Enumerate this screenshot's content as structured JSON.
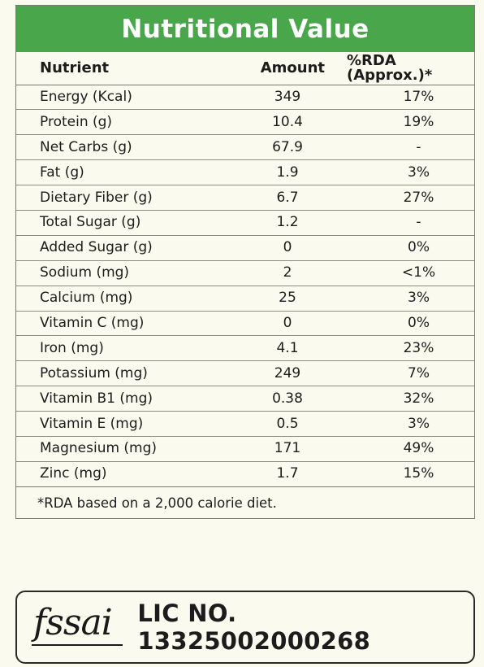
{
  "title": "Nutritional Value",
  "headers": {
    "nutrient": "Nutrient",
    "amount": "Amount",
    "rda": "%RDA (Approx.)*"
  },
  "rows": [
    {
      "nutrient": "Energy (Kcal)",
      "amount": "349",
      "rda": "17%"
    },
    {
      "nutrient": "Protein (g)",
      "amount": "10.4",
      "rda": "19%"
    },
    {
      "nutrient": "Net Carbs (g)",
      "amount": "67.9",
      "rda": "-"
    },
    {
      "nutrient": "Fat (g)",
      "amount": "1.9",
      "rda": "3%"
    },
    {
      "nutrient": "Dietary Fiber (g)",
      "amount": "6.7",
      "rda": "27%"
    },
    {
      "nutrient": "Total Sugar (g)",
      "amount": "1.2",
      "rda": "-"
    },
    {
      "nutrient": "Added Sugar (g)",
      "amount": "0",
      "rda": "0%"
    },
    {
      "nutrient": "Sodium (mg)",
      "amount": "2",
      "rda": "<1%"
    },
    {
      "nutrient": "Calcium (mg)",
      "amount": "25",
      "rda": "3%"
    },
    {
      "nutrient": "Vitamin C (mg)",
      "amount": "0",
      "rda": "0%"
    },
    {
      "nutrient": "Iron (mg)",
      "amount": "4.1",
      "rda": "23%"
    },
    {
      "nutrient": "Potassium (mg)",
      "amount": "249",
      "rda": "7%"
    },
    {
      "nutrient": "Vitamin B1 (mg)",
      "amount": "0.38",
      "rda": "32%"
    },
    {
      "nutrient": "Vitamin E (mg)",
      "amount": "0.5",
      "rda": "3%"
    },
    {
      "nutrient": "Magnesium (mg)",
      "amount": "171",
      "rda": "49%"
    },
    {
      "nutrient": "Zinc (mg)",
      "amount": "1.7",
      "rda": "15%"
    }
  ],
  "footnote": "*RDA based on a 2,000 calorie diet.",
  "fssai": {
    "logo_text": "fssai",
    "license": "LIC NO. 13325002000268"
  },
  "colors": {
    "header_green": "#4aa64a",
    "background": "#fbfaee"
  }
}
